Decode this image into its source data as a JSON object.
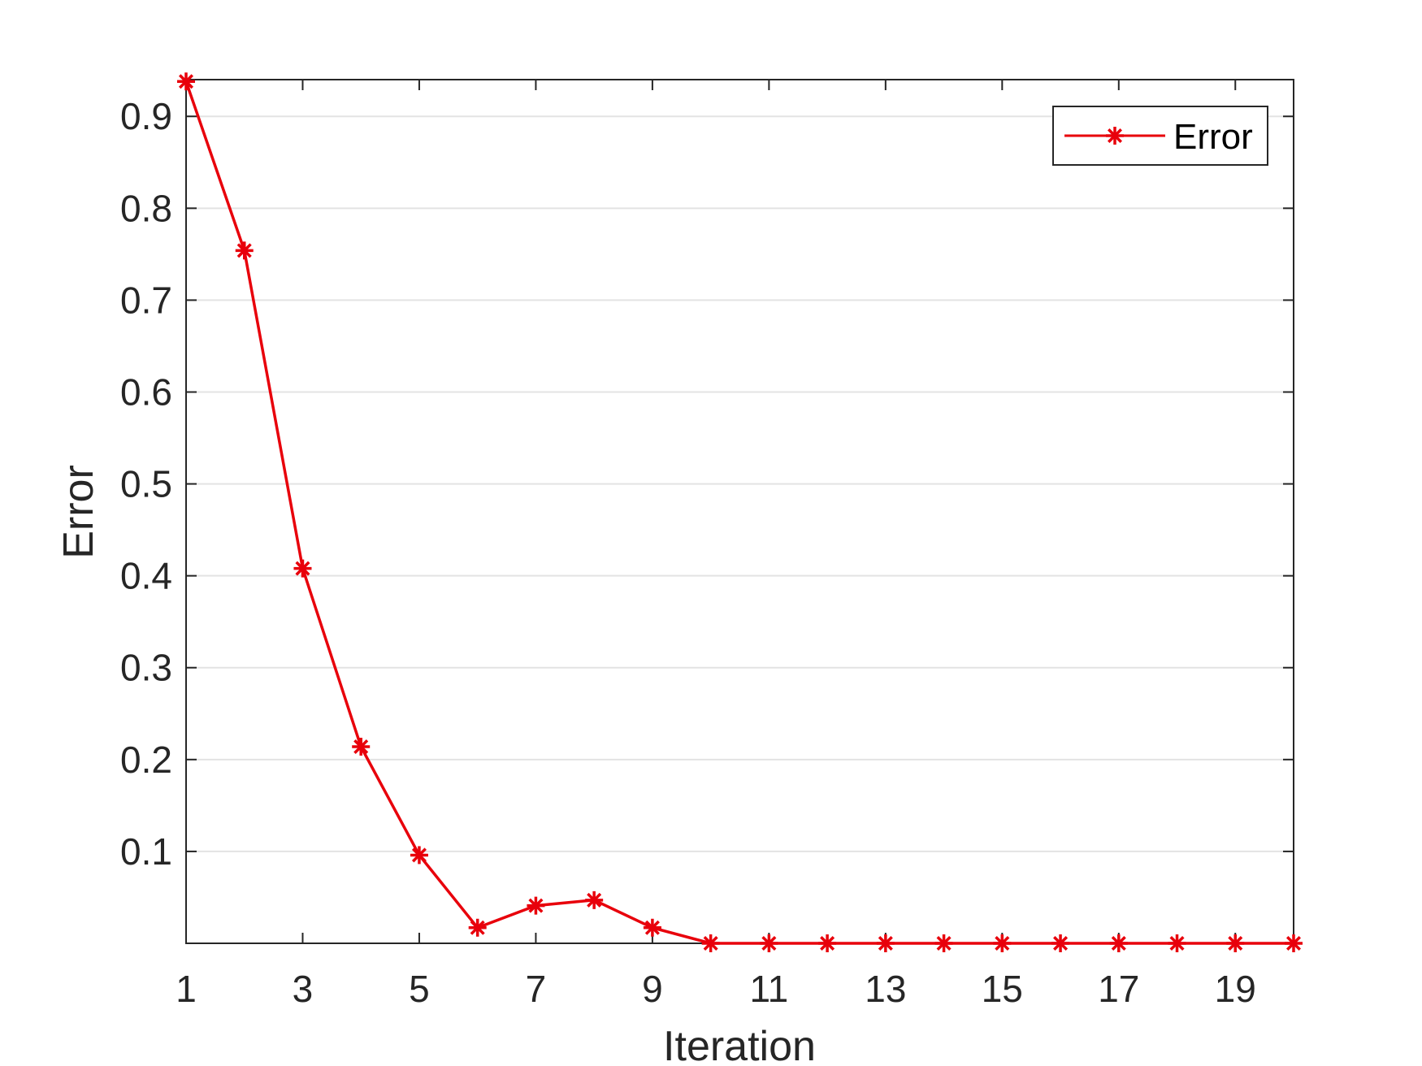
{
  "chart_data": {
    "type": "line",
    "xlabel": "Iteration",
    "ylabel": "Error",
    "xlim": [
      1,
      20
    ],
    "ylim": [
      0,
      0.94
    ],
    "xticks": [
      1,
      3,
      5,
      7,
      9,
      11,
      13,
      15,
      17,
      19
    ],
    "xtick_labels": [
      "1",
      "3",
      "5",
      "7",
      "9",
      "11",
      "13",
      "15",
      "17",
      "19"
    ],
    "yticks": [
      0.1,
      0.2,
      0.3,
      0.4,
      0.5,
      0.6,
      0.7,
      0.8,
      0.9
    ],
    "ytick_labels": [
      "0.1",
      "0.2",
      "0.3",
      "0.4",
      "0.5",
      "0.6",
      "0.7",
      "0.8",
      "0.9"
    ],
    "grid": "horizontal",
    "legend_position": "top-right",
    "x": [
      1,
      2,
      3,
      4,
      5,
      6,
      7,
      8,
      9,
      10,
      11,
      12,
      13,
      14,
      15,
      16,
      17,
      18,
      19,
      20
    ],
    "series": [
      {
        "name": "Error",
        "color": "#e8000b",
        "marker": "asterisk",
        "values": [
          0.938,
          0.754,
          0.408,
          0.214,
          0.096,
          0.017,
          0.041,
          0.047,
          0.017,
          0.0,
          0.0,
          0.0,
          0.0,
          0.0,
          0.0,
          0.0,
          0.0,
          0.0,
          0.0,
          0.0
        ]
      }
    ]
  }
}
